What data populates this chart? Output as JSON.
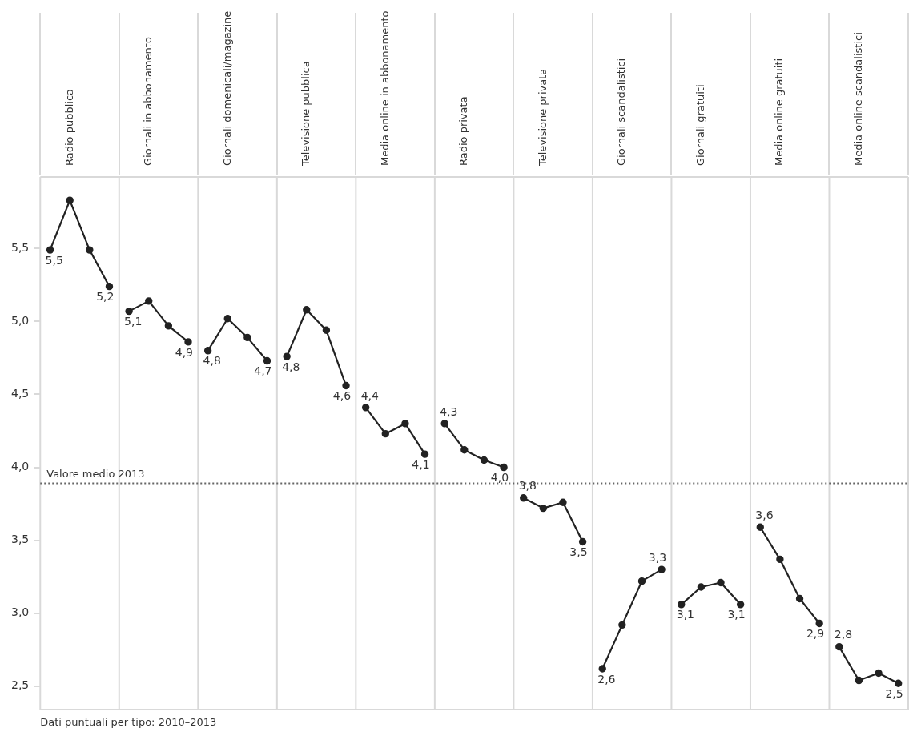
{
  "chart_data": {
    "type": "line",
    "categories": [
      null,
      "Radio pubblica",
      null,
      null,
      null,
      "Giornali in abbonamento",
      null,
      null,
      null,
      "Giornali domenicali/magazine",
      null,
      null,
      null,
      "Televisione pubblica",
      null,
      null,
      null,
      "Media online in abbonamento",
      null,
      null,
      null,
      "Radio privata",
      null,
      null,
      null,
      "Televisione privata",
      null,
      null,
      null,
      "Giornali scandalistici",
      null,
      null,
      null,
      "Giornali gratuiti",
      null,
      null,
      null,
      "Media online gratuiti",
      null,
      null,
      null,
      "Media online scandalistici",
      null,
      null
    ],
    "series": [
      {
        "color": "#222222",
        "values": [
          5.49,
          5.83,
          5.49,
          5.24,
          null,
          null,
          null,
          null,
          null,
          null,
          null,
          null,
          null,
          null,
          null,
          null,
          null,
          null,
          null,
          null,
          null,
          null,
          null,
          null,
          null,
          null,
          null,
          null,
          null,
          null,
          null,
          null,
          null,
          null,
          null,
          null,
          null,
          null,
          null,
          null,
          null,
          null,
          null,
          null
        ],
        "value_labels": [
          "5,5",
          null,
          null,
          "5,2",
          null,
          null,
          null,
          null,
          null,
          null,
          null,
          null,
          null,
          null,
          null,
          null,
          null,
          null,
          null,
          null,
          null,
          null,
          null,
          null,
          null,
          null,
          null,
          null,
          null,
          null,
          null,
          null,
          null,
          null,
          null,
          null,
          null,
          null,
          null,
          null,
          null,
          null,
          null,
          null
        ]
      },
      {
        "color": "#222222",
        "values": [
          null,
          null,
          null,
          null,
          5.07,
          5.14,
          4.97,
          4.86,
          null,
          null,
          null,
          null,
          null,
          null,
          null,
          null,
          null,
          null,
          null,
          null,
          null,
          null,
          null,
          null,
          null,
          null,
          null,
          null,
          null,
          null,
          null,
          null,
          null,
          null,
          null,
          null,
          null,
          null,
          null,
          null,
          null,
          null,
          null,
          null
        ],
        "value_labels": [
          null,
          null,
          null,
          null,
          "5,1",
          null,
          null,
          "4,9",
          null,
          null,
          null,
          null,
          null,
          null,
          null,
          null,
          null,
          null,
          null,
          null,
          null,
          null,
          null,
          null,
          null,
          null,
          null,
          null,
          null,
          null,
          null,
          null,
          null,
          null,
          null,
          null,
          null,
          null,
          null,
          null,
          null,
          null,
          null,
          null
        ]
      },
      {
        "color": "#222222",
        "values": [
          null,
          null,
          null,
          null,
          null,
          null,
          null,
          null,
          4.8,
          5.02,
          4.89,
          4.73,
          null,
          null,
          null,
          null,
          null,
          null,
          null,
          null,
          null,
          null,
          null,
          null,
          null,
          null,
          null,
          null,
          null,
          null,
          null,
          null,
          null,
          null,
          null,
          null,
          null,
          null,
          null,
          null,
          null,
          null,
          null,
          null
        ],
        "value_labels": [
          null,
          null,
          null,
          null,
          null,
          null,
          null,
          null,
          "4,8",
          null,
          null,
          "4,7",
          null,
          null,
          null,
          null,
          null,
          null,
          null,
          null,
          null,
          null,
          null,
          null,
          null,
          null,
          null,
          null,
          null,
          null,
          null,
          null,
          null,
          null,
          null,
          null,
          null,
          null,
          null,
          null,
          null,
          null,
          null,
          null
        ]
      },
      {
        "color": "#222222",
        "values": [
          null,
          null,
          null,
          null,
          null,
          null,
          null,
          null,
          null,
          null,
          null,
          null,
          4.76,
          5.08,
          4.94,
          4.56,
          null,
          null,
          null,
          null,
          null,
          null,
          null,
          null,
          null,
          null,
          null,
          null,
          null,
          null,
          null,
          null,
          null,
          null,
          null,
          null,
          null,
          null,
          null,
          null,
          null,
          null,
          null,
          null
        ],
        "value_labels": [
          null,
          null,
          null,
          null,
          null,
          null,
          null,
          null,
          null,
          null,
          null,
          null,
          "4,8",
          null,
          null,
          "4,6",
          null,
          null,
          null,
          null,
          null,
          null,
          null,
          null,
          null,
          null,
          null,
          null,
          null,
          null,
          null,
          null,
          null,
          null,
          null,
          null,
          null,
          null,
          null,
          null,
          null,
          null,
          null,
          null
        ]
      },
      {
        "color": "#222222",
        "values": [
          null,
          null,
          null,
          null,
          null,
          null,
          null,
          null,
          null,
          null,
          null,
          null,
          null,
          null,
          null,
          null,
          4.41,
          4.23,
          4.3,
          4.09,
          null,
          null,
          null,
          null,
          null,
          null,
          null,
          null,
          null,
          null,
          null,
          null,
          null,
          null,
          null,
          null,
          null,
          null,
          null,
          null,
          null,
          null,
          null,
          null
        ],
        "value_labels": [
          null,
          null,
          null,
          null,
          null,
          null,
          null,
          null,
          null,
          null,
          null,
          null,
          null,
          null,
          null,
          null,
          "4,4",
          null,
          null,
          "4,1",
          null,
          null,
          null,
          null,
          null,
          null,
          null,
          null,
          null,
          null,
          null,
          null,
          null,
          null,
          null,
          null,
          null,
          null,
          null,
          null,
          null,
          null,
          null,
          null
        ]
      },
      {
        "color": "#222222",
        "values": [
          null,
          null,
          null,
          null,
          null,
          null,
          null,
          null,
          null,
          null,
          null,
          null,
          null,
          null,
          null,
          null,
          null,
          null,
          null,
          null,
          4.3,
          4.12,
          4.05,
          4.0,
          null,
          null,
          null,
          null,
          null,
          null,
          null,
          null,
          null,
          null,
          null,
          null,
          null,
          null,
          null,
          null,
          null,
          null,
          null,
          null
        ],
        "value_labels": [
          null,
          null,
          null,
          null,
          null,
          null,
          null,
          null,
          null,
          null,
          null,
          null,
          null,
          null,
          null,
          null,
          null,
          null,
          null,
          null,
          "4,3",
          null,
          null,
          "4,0",
          null,
          null,
          null,
          null,
          null,
          null,
          null,
          null,
          null,
          null,
          null,
          null,
          null,
          null,
          null,
          null,
          null,
          null,
          null,
          null
        ]
      },
      {
        "color": "#222222",
        "values": [
          null,
          null,
          null,
          null,
          null,
          null,
          null,
          null,
          null,
          null,
          null,
          null,
          null,
          null,
          null,
          null,
          null,
          null,
          null,
          null,
          null,
          null,
          null,
          null,
          3.79,
          3.72,
          3.76,
          3.49,
          null,
          null,
          null,
          null,
          null,
          null,
          null,
          null,
          null,
          null,
          null,
          null,
          null,
          null,
          null,
          null
        ],
        "value_labels": [
          null,
          null,
          null,
          null,
          null,
          null,
          null,
          null,
          null,
          null,
          null,
          null,
          null,
          null,
          null,
          null,
          null,
          null,
          null,
          null,
          null,
          null,
          null,
          null,
          "3,8",
          null,
          null,
          "3,5",
          null,
          null,
          null,
          null,
          null,
          null,
          null,
          null,
          null,
          null,
          null,
          null,
          null,
          null,
          null,
          null
        ]
      },
      {
        "color": "#222222",
        "values": [
          null,
          null,
          null,
          null,
          null,
          null,
          null,
          null,
          null,
          null,
          null,
          null,
          null,
          null,
          null,
          null,
          null,
          null,
          null,
          null,
          null,
          null,
          null,
          null,
          null,
          null,
          null,
          null,
          2.62,
          2.92,
          3.22,
          3.3,
          null,
          null,
          null,
          null,
          null,
          null,
          null,
          null,
          null,
          null,
          null,
          null
        ],
        "value_labels": [
          null,
          null,
          null,
          null,
          null,
          null,
          null,
          null,
          null,
          null,
          null,
          null,
          null,
          null,
          null,
          null,
          null,
          null,
          null,
          null,
          null,
          null,
          null,
          null,
          null,
          null,
          null,
          null,
          "2,6",
          null,
          null,
          "3,3",
          null,
          null,
          null,
          null,
          null,
          null,
          null,
          null,
          null,
          null,
          null,
          null
        ]
      },
      {
        "color": "#222222",
        "values": [
          null,
          null,
          null,
          null,
          null,
          null,
          null,
          null,
          null,
          null,
          null,
          null,
          null,
          null,
          null,
          null,
          null,
          null,
          null,
          null,
          null,
          null,
          null,
          null,
          null,
          null,
          null,
          null,
          null,
          null,
          null,
          null,
          3.06,
          3.18,
          3.21,
          3.06,
          null,
          null,
          null,
          null,
          null,
          null,
          null,
          null
        ],
        "value_labels": [
          null,
          null,
          null,
          null,
          null,
          null,
          null,
          null,
          null,
          null,
          null,
          null,
          null,
          null,
          null,
          null,
          null,
          null,
          null,
          null,
          null,
          null,
          null,
          null,
          null,
          null,
          null,
          null,
          null,
          null,
          null,
          null,
          "3,1",
          null,
          null,
          "3,1",
          null,
          null,
          null,
          null,
          null,
          null,
          null,
          null
        ]
      },
      {
        "color": "#222222",
        "values": [
          null,
          null,
          null,
          null,
          null,
          null,
          null,
          null,
          null,
          null,
          null,
          null,
          null,
          null,
          null,
          null,
          null,
          null,
          null,
          null,
          null,
          null,
          null,
          null,
          null,
          null,
          null,
          null,
          null,
          null,
          null,
          null,
          null,
          null,
          null,
          null,
          3.59,
          3.37,
          3.1,
          2.93,
          null,
          null,
          null,
          null
        ],
        "value_labels": [
          null,
          null,
          null,
          null,
          null,
          null,
          null,
          null,
          null,
          null,
          null,
          null,
          null,
          null,
          null,
          null,
          null,
          null,
          null,
          null,
          null,
          null,
          null,
          null,
          null,
          null,
          null,
          null,
          null,
          null,
          null,
          null,
          null,
          null,
          null,
          null,
          "3,6",
          null,
          null,
          "2,9",
          null,
          null,
          null,
          null
        ]
      },
      {
        "color": "#222222",
        "values": [
          null,
          null,
          null,
          null,
          null,
          null,
          null,
          null,
          null,
          null,
          null,
          null,
          null,
          null,
          null,
          null,
          null,
          null,
          null,
          null,
          null,
          null,
          null,
          null,
          null,
          null,
          null,
          null,
          null,
          null,
          null,
          null,
          null,
          null,
          null,
          null,
          null,
          null,
          null,
          null,
          2.77,
          2.54,
          2.59,
          2.52
        ],
        "value_labels": [
          null,
          null,
          null,
          null,
          null,
          null,
          null,
          null,
          null,
          null,
          null,
          null,
          null,
          null,
          null,
          null,
          null,
          null,
          null,
          null,
          null,
          null,
          null,
          null,
          null,
          null,
          null,
          null,
          null,
          null,
          null,
          null,
          null,
          null,
          null,
          null,
          null,
          null,
          null,
          null,
          "2,8",
          null,
          null,
          "2,5"
        ]
      }
    ],
    "ylim": [
      2.34,
      5.99
    ],
    "yticks": [
      {
        "value": 2.5,
        "label": "2,5"
      },
      {
        "value": 3,
        "label": "3,0"
      },
      {
        "value": 3.5,
        "label": "3,5"
      },
      {
        "value": 4,
        "label": "4,0"
      },
      {
        "value": 4.5,
        "label": "4,5"
      },
      {
        "value": 5,
        "label": "5,0"
      },
      {
        "value": 5.5,
        "label": "5,5"
      }
    ],
    "ref_lines": [
      {
        "axis": "y",
        "value": 3.89,
        "label": "Valore medio 2013",
        "color": "#666666",
        "line_style": "dotted"
      }
    ],
    "annotations": [
      "Dati puntuali per tipo: 2010–2013"
    ],
    "grid": "x",
    "marker": "circle",
    "line_style": "solid"
  }
}
